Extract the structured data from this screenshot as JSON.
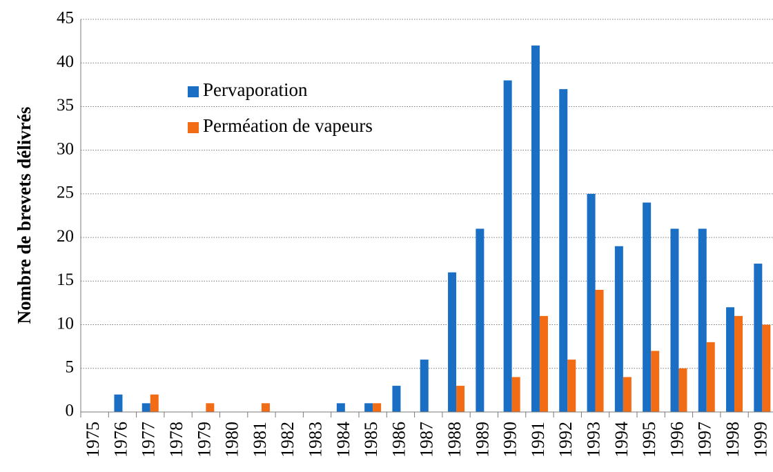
{
  "chart_data": {
    "type": "bar",
    "ylabel": "Nombre de brevets délivrés",
    "categories": [
      "1975",
      "1976",
      "1977",
      "1978",
      "1979",
      "1980",
      "1981",
      "1982",
      "1983",
      "1984",
      "1985",
      "1986",
      "1987",
      "1988",
      "1989",
      "1990",
      "1991",
      "1992",
      "1993",
      "1994",
      "1995",
      "1996",
      "1997",
      "1998",
      "1999"
    ],
    "series": [
      {
        "name": "Pervaporation",
        "color": "#1a6fc4",
        "values": [
          0,
          2,
          1,
          0,
          0,
          0,
          0,
          0,
          0,
          1,
          1,
          3,
          6,
          16,
          21,
          38,
          42,
          37,
          25,
          19,
          24,
          21,
          21,
          12,
          17
        ]
      },
      {
        "name": "Perméation de vapeurs",
        "color": "#f26b15",
        "values": [
          0,
          0,
          2,
          0,
          1,
          0,
          1,
          0,
          0,
          0,
          1,
          0,
          0,
          3,
          0,
          4,
          11,
          6,
          14,
          4,
          7,
          5,
          8,
          11,
          10
        ]
      }
    ],
    "ylim": [
      0,
      45
    ],
    "yticks": [
      0,
      5,
      10,
      15,
      20,
      25,
      30,
      35,
      40,
      45
    ],
    "grid": true,
    "legend": "upper left"
  }
}
